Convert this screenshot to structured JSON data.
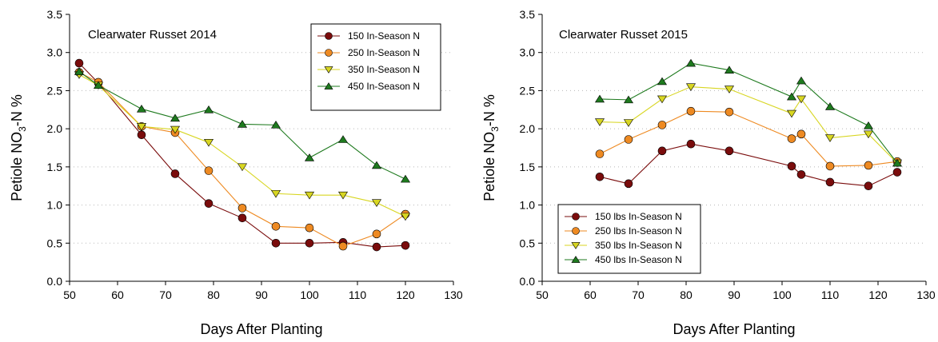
{
  "chart_data": [
    {
      "type": "line",
      "title": "Clearwater Russet 2014",
      "xlabel": "Days After Planting",
      "ylabel_main": "Petiole NO",
      "ylabel_sub": "3",
      "ylabel_rest": "-N %",
      "xlim": [
        50,
        130
      ],
      "ylim": [
        0,
        3.5
      ],
      "xticks": [
        "50",
        "60",
        "70",
        "80",
        "90",
        "100",
        "110",
        "120",
        "130"
      ],
      "yticks": [
        "0.0",
        "0.5",
        "1.0",
        "1.5",
        "2.0",
        "2.5",
        "3.0",
        "3.5"
      ],
      "legend_position": "top-right",
      "grid": "horizontal-dotted",
      "series": [
        {
          "name": "150 In-Season N",
          "color": "#7a0c0c",
          "marker": "circle",
          "x": [
            52,
            56,
            65,
            72,
            79,
            86,
            93,
            100,
            107,
            114,
            120
          ],
          "y": [
            2.86,
            2.6,
            1.92,
            1.41,
            1.02,
            0.83,
            0.5,
            0.5,
            0.51,
            0.45,
            0.47
          ]
        },
        {
          "name": "250 In-Season N",
          "color": "#ee8a22",
          "marker": "circle",
          "x": [
            52,
            56,
            65,
            72,
            79,
            86,
            93,
            100,
            107,
            114,
            120
          ],
          "y": [
            2.74,
            2.61,
            2.03,
            1.95,
            1.45,
            0.96,
            0.72,
            0.7,
            0.46,
            0.62,
            0.88
          ]
        },
        {
          "name": "350 In-Season N",
          "color": "#d8d622",
          "marker": "triangle-down",
          "x": [
            52,
            56,
            65,
            72,
            79,
            86,
            93,
            100,
            107,
            114,
            120
          ],
          "y": [
            2.71,
            2.57,
            2.03,
            1.99,
            1.82,
            1.5,
            1.15,
            1.13,
            1.13,
            1.03,
            0.85
          ]
        },
        {
          "name": "450 In-Season N",
          "color": "#1e7a1e",
          "marker": "triangle-up",
          "x": [
            52,
            56,
            65,
            72,
            79,
            86,
            93,
            100,
            107,
            114,
            120
          ],
          "y": [
            2.75,
            2.57,
            2.26,
            2.14,
            2.25,
            2.06,
            2.05,
            1.62,
            1.86,
            1.52,
            1.34
          ]
        }
      ]
    },
    {
      "type": "line",
      "title": "Clearwater Russet 2015",
      "xlabel": "Days After Planting",
      "ylabel_main": "Petiole NO",
      "ylabel_sub": "3",
      "ylabel_rest": "-N %",
      "xlim": [
        50,
        130
      ],
      "ylim": [
        0,
        3.5
      ],
      "xticks": [
        "50",
        "60",
        "70",
        "80",
        "90",
        "100",
        "110",
        "120",
        "130"
      ],
      "yticks": [
        "0.0",
        "0.5",
        "1.0",
        "1.5",
        "2.0",
        "2.5",
        "3.0",
        "3.5"
      ],
      "legend_position": "bottom-left",
      "grid": "horizontal-dotted",
      "series": [
        {
          "name": "150 lbs In-Season N",
          "color": "#7a0c0c",
          "marker": "circle",
          "x": [
            62,
            68,
            75,
            81,
            89,
            102,
            104,
            110,
            118,
            124
          ],
          "y": [
            1.37,
            1.28,
            1.71,
            1.8,
            1.71,
            1.51,
            1.4,
            1.3,
            1.25,
            1.43
          ]
        },
        {
          "name": "250 lbs In-Season N",
          "color": "#ee8a22",
          "marker": "circle",
          "x": [
            62,
            68,
            75,
            81,
            89,
            102,
            104,
            110,
            118,
            124
          ],
          "y": [
            1.67,
            1.86,
            2.05,
            2.23,
            2.22,
            1.87,
            1.93,
            1.51,
            1.52,
            1.57
          ]
        },
        {
          "name": "350 lbs In-Season N",
          "color": "#d8d622",
          "marker": "triangle-down",
          "x": [
            62,
            68,
            75,
            81,
            89,
            102,
            104,
            110,
            118,
            124
          ],
          "y": [
            2.09,
            2.08,
            2.39,
            2.55,
            2.52,
            2.2,
            2.39,
            1.88,
            1.93,
            1.55
          ]
        },
        {
          "name": "450 lbs In-Season N",
          "color": "#1e7a1e",
          "marker": "triangle-up",
          "x": [
            62,
            68,
            75,
            81,
            89,
            102,
            104,
            110,
            118,
            124
          ],
          "y": [
            2.39,
            2.38,
            2.62,
            2.86,
            2.77,
            2.42,
            2.63,
            2.29,
            2.04,
            1.55
          ]
        }
      ]
    }
  ]
}
